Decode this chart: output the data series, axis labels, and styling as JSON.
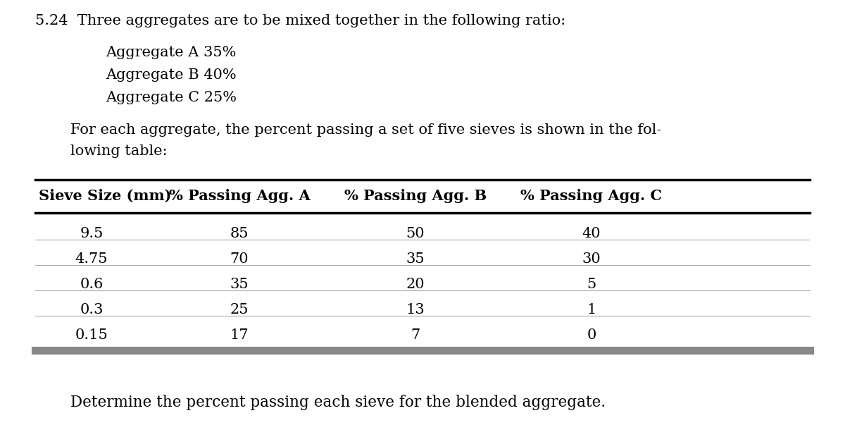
{
  "title_number": "5.24",
  "title_text": "Three aggregates are to be mixed together in the following ratio:",
  "aggregate_lines": [
    "Aggregate A 35%",
    "Aggregate B 40%",
    "Aggregate C 25%"
  ],
  "para_line1": "For each aggregate, the percent passing a set of five sieves is shown in the fol-",
  "para_line2": "lowing table:",
  "col_headers": [
    "Sieve Size (mm)",
    "% Passing Agg. A",
    "% Passing Agg. B",
    "% Passing Agg. C"
  ],
  "rows": [
    [
      "9.5",
      "85",
      "50",
      "40"
    ],
    [
      "4.75",
      "70",
      "35",
      "30"
    ],
    [
      "0.6",
      "35",
      "20",
      "5"
    ],
    [
      "0.3",
      "25",
      "13",
      "1"
    ],
    [
      "0.15",
      "17",
      "7",
      "0"
    ]
  ],
  "footer_text": "Determine the percent passing each sieve for the blended aggregate.",
  "bg_color": "#ffffff",
  "text_color": "#000000",
  "table_line_color": "#000000",
  "table_bottom_color": "#888888",
  "thin_line_color": "#aaaaaa",
  "title_fontsize": 15,
  "agg_fontsize": 15,
  "para_fontsize": 15,
  "header_fontsize": 15,
  "body_fontsize": 15,
  "footer_fontsize": 15.5
}
